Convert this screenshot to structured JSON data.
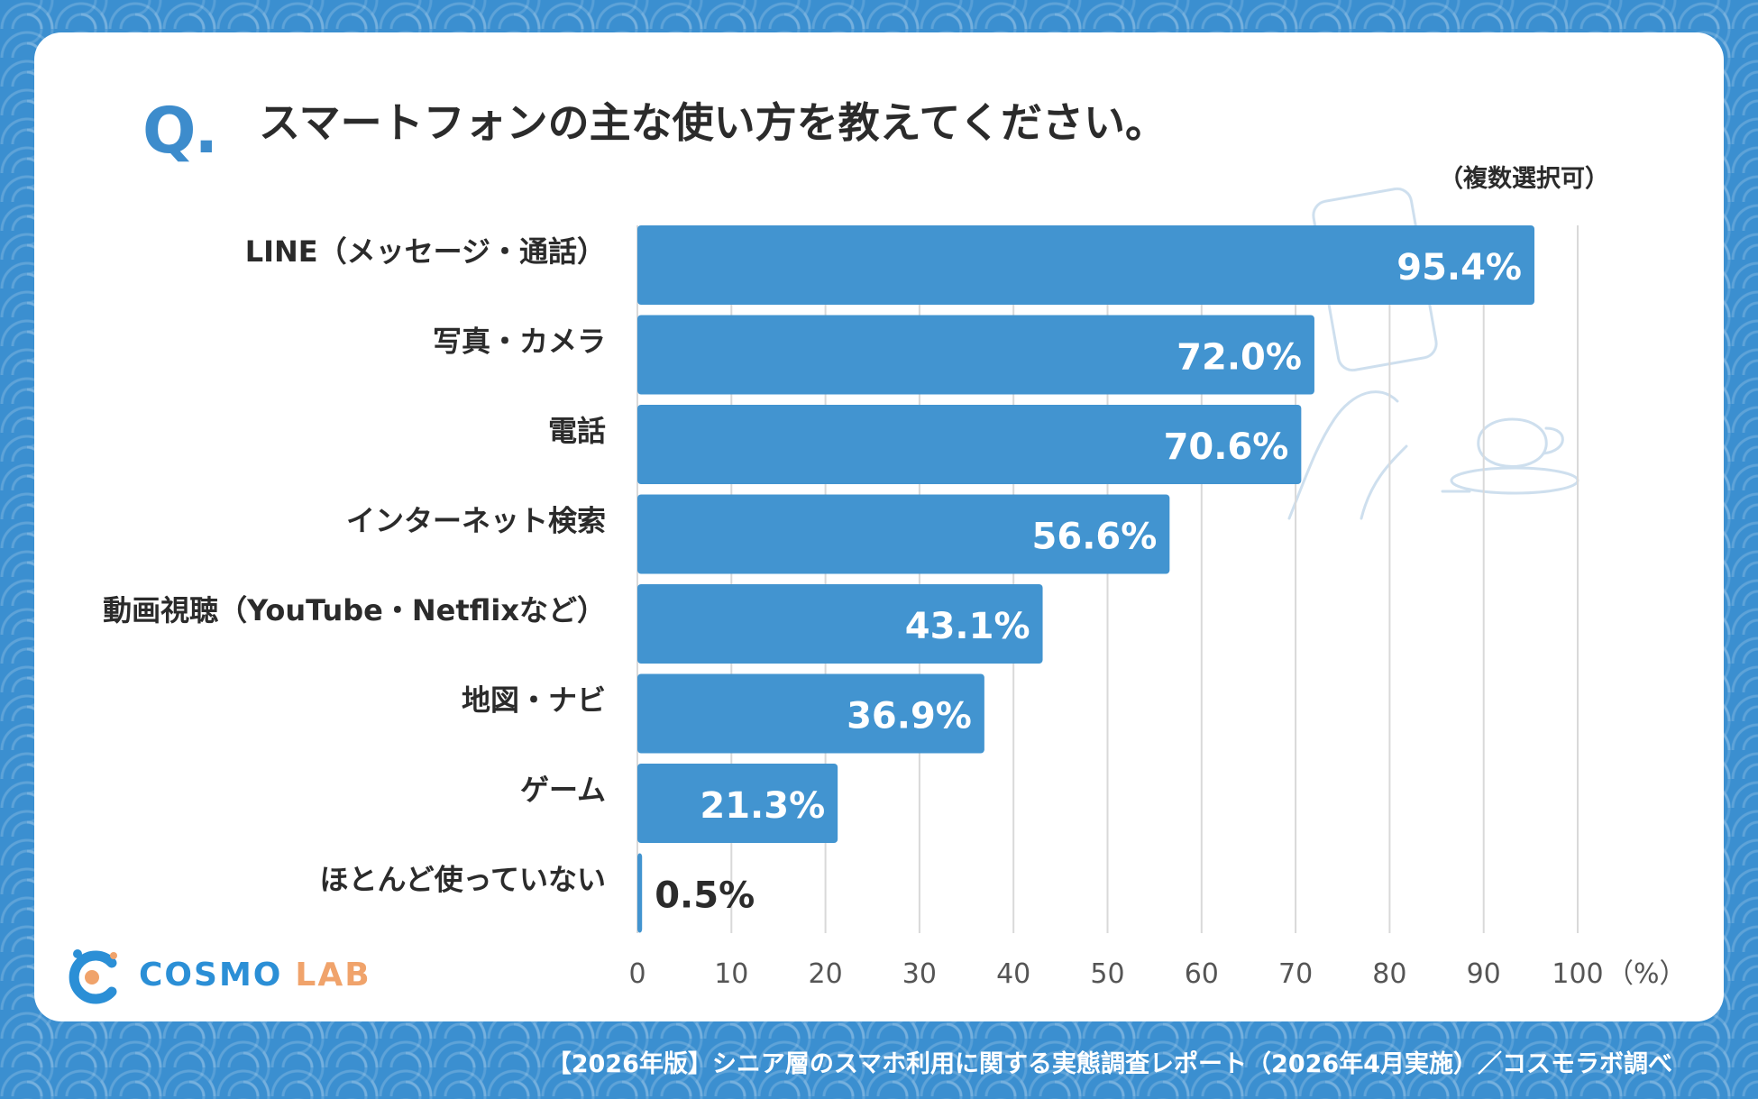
{
  "question_mark": "Q.",
  "title": "スマートフォンの主な使い方を教えてください。",
  "note": "（複数選択可）",
  "logo": {
    "part1": "COSMO",
    "part2": "LAB"
  },
  "footer": "【2026年版】シニア層のスマホ利用に関する実態調査レポート（2026年4月実施）／コスモラボ調べ",
  "colors": {
    "bar": "#4294d0",
    "background": "#3b8fd0",
    "grid": "#d9d9d9",
    "logo_blue": "#2b8fd6",
    "logo_orange": "#f0a36b"
  },
  "chart_data": {
    "type": "bar",
    "orientation": "horizontal",
    "categories": [
      "LINE（メッセージ・通話）",
      "写真・カメラ",
      "電話",
      "インターネット検索",
      "動画視聴（YouTube・Netflixなど）",
      "地図・ナビ",
      "ゲーム",
      "ほとんど使っていない"
    ],
    "values": [
      95.4,
      72.0,
      70.6,
      56.6,
      43.1,
      36.9,
      21.3,
      0.5
    ],
    "value_labels": [
      "95.4%",
      "72.0%",
      "70.6%",
      "56.6%",
      "43.1%",
      "36.9%",
      "21.3%",
      "0.5%"
    ],
    "xlim": [
      0,
      100
    ],
    "x_ticks": [
      0,
      10,
      20,
      30,
      40,
      50,
      60,
      70,
      80,
      90,
      100
    ],
    "x_unit": "（%）",
    "grid": true
  }
}
